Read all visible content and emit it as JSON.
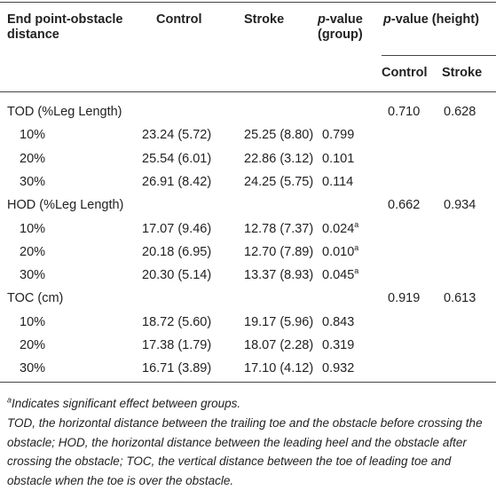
{
  "table": {
    "header": {
      "col0": "End point-obstacle distance",
      "control": "Control",
      "stroke": "Stroke",
      "p_group": {
        "italic": "p",
        "rest": "-value (group)"
      },
      "p_height": {
        "italic": "p",
        "rest": "-value (height)"
      },
      "sub": [
        "Control",
        "Stroke"
      ]
    },
    "groups": [
      {
        "label": "TOD (%Leg Length)",
        "p_height": [
          "0.710",
          "0.628"
        ],
        "rows": [
          {
            "level": "10%",
            "control": "23.24 (5.72)",
            "stroke": "25.25 (8.80)",
            "p": "0.799"
          },
          {
            "level": "20%",
            "control": "25.54 (6.01)",
            "stroke": "22.86 (3.12)",
            "p": "0.101"
          },
          {
            "level": "30%",
            "control": "26.91 (8.42)",
            "stroke": "24.25 (5.75)",
            "p": "0.114"
          }
        ]
      },
      {
        "label": "HOD (%Leg Length)",
        "p_height": [
          "0.662",
          "0.934"
        ],
        "rows": [
          {
            "level": "10%",
            "control": "17.07 (9.46)",
            "stroke": "12.78 (7.37)",
            "p": "0.024",
            "sup": "a"
          },
          {
            "level": "20%",
            "control": "20.18 (6.95)",
            "stroke": "12.70 (7.89)",
            "p": "0.010",
            "sup": "a"
          },
          {
            "level": "30%",
            "control": "20.30 (5.14)",
            "stroke": "13.37 (8.93)",
            "p": "0.045",
            "sup": "a"
          }
        ]
      },
      {
        "label": "TOC (cm)",
        "p_height": [
          "0.919",
          "0.613"
        ],
        "rows": [
          {
            "level": "10%",
            "control": "18.72 (5.60)",
            "stroke": "19.17 (5.96)",
            "p": "0.843"
          },
          {
            "level": "20%",
            "control": "17.38 (1.79)",
            "stroke": "18.07 (2.28)",
            "p": "0.319"
          },
          {
            "level": "30%",
            "control": "16.71 (3.89)",
            "stroke": "17.10 (4.12)",
            "p": "0.932"
          }
        ]
      }
    ]
  },
  "footnotes": [
    {
      "sup": "a",
      "text": "Indicates significant effect between groups."
    },
    {
      "text": "TOD, the horizontal distance between the trailing toe and the obstacle before crossing the obstacle; HOD, the horizontal distance between the leading heel and the obstacle after crossing the obstacle; TOC, the vertical distance between the toe of leading toe and obstacle when the toe is over the obstacle."
    }
  ]
}
